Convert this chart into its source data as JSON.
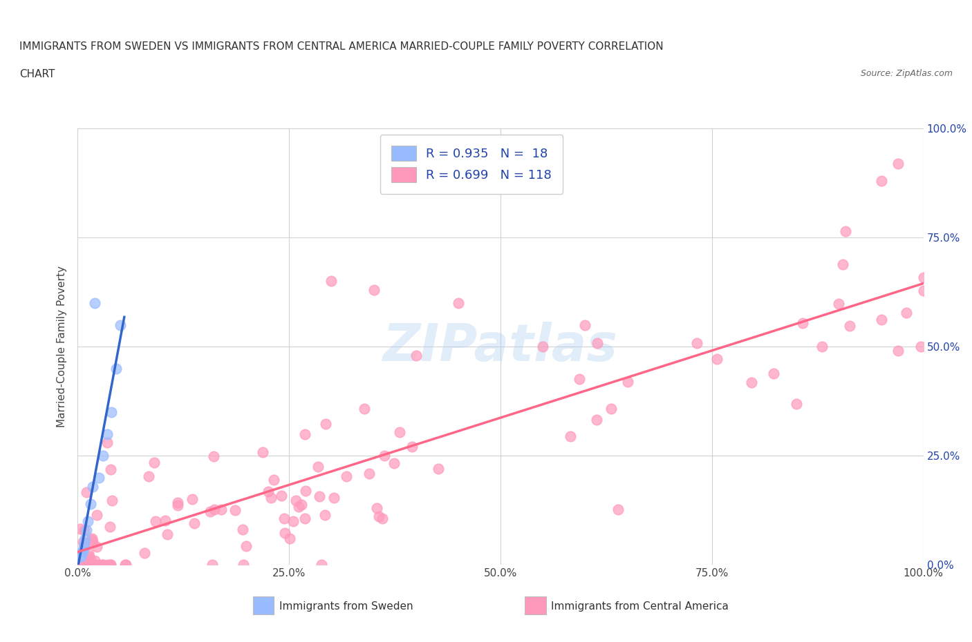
{
  "title_line1": "IMMIGRANTS FROM SWEDEN VS IMMIGRANTS FROM CENTRAL AMERICA MARRIED-COUPLE FAMILY POVERTY CORRELATION",
  "title_line2": "CHART",
  "source": "Source: ZipAtlas.com",
  "ylabel": "Married-Couple Family Poverty",
  "xlim": [
    0,
    100
  ],
  "ylim": [
    0,
    100
  ],
  "xticks": [
    0,
    25,
    50,
    75,
    100
  ],
  "yticks": [
    0,
    25,
    50,
    75,
    100
  ],
  "xticklabels": [
    "0.0%",
    "25.0%",
    "50.0%",
    "75.0%",
    "100.0%"
  ],
  "yticklabels": [
    "0.0%",
    "25.0%",
    "50.0%",
    "75.0%",
    "100.0%"
  ],
  "sweden_R": 0.935,
  "sweden_N": 18,
  "central_america_R": 0.699,
  "central_america_N": 118,
  "sweden_color": "#99bbff",
  "central_america_color": "#ff99bb",
  "sweden_line_color": "#3366cc",
  "central_america_line_color": "#ff6688",
  "legend_text_color": "#2244aa",
  "background_color": "#ffffff",
  "grid_color": "#cccccc",
  "watermark_color": "#aaccee",
  "sweden_x": [
    0.3,
    0.4,
    0.5,
    0.6,
    0.7,
    0.8,
    0.9,
    1.0,
    1.2,
    1.5,
    1.8,
    2.0,
    2.5,
    3.0,
    3.5,
    4.0,
    4.5,
    5.0
  ],
  "sweden_y": [
    2,
    2,
    3,
    3,
    4,
    5,
    6,
    8,
    10,
    14,
    18,
    60,
    20,
    25,
    30,
    35,
    45,
    55
  ]
}
